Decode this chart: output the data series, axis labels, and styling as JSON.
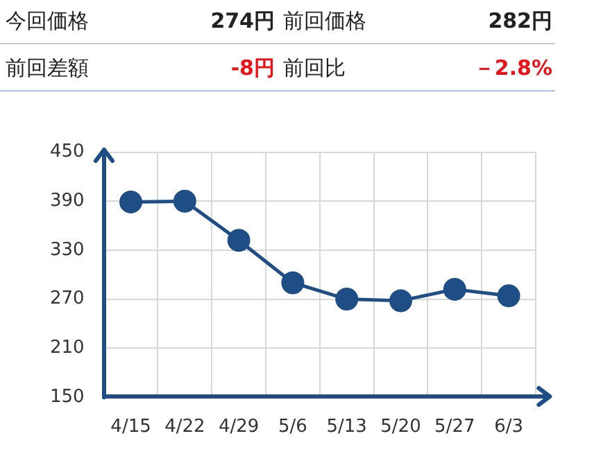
{
  "chart_data": {
    "type": "line",
    "categories": [
      "4/15",
      "4/22",
      "4/29",
      "5/6",
      "5/13",
      "5/20",
      "5/27",
      "6/3"
    ],
    "values": [
      389,
      390,
      342,
      290,
      270,
      268,
      282,
      274
    ],
    "color": "#1f4e87",
    "ylim": [
      150,
      450
    ],
    "yticks": [
      150,
      210,
      270,
      330,
      390,
      450
    ],
    "grid": true,
    "marker": "circle",
    "annotations": [
      "今回価格",
      "274円",
      "前回価格",
      "282円",
      "前回差額",
      "-8円",
      "前回比",
      "－2.8%"
    ]
  }
}
